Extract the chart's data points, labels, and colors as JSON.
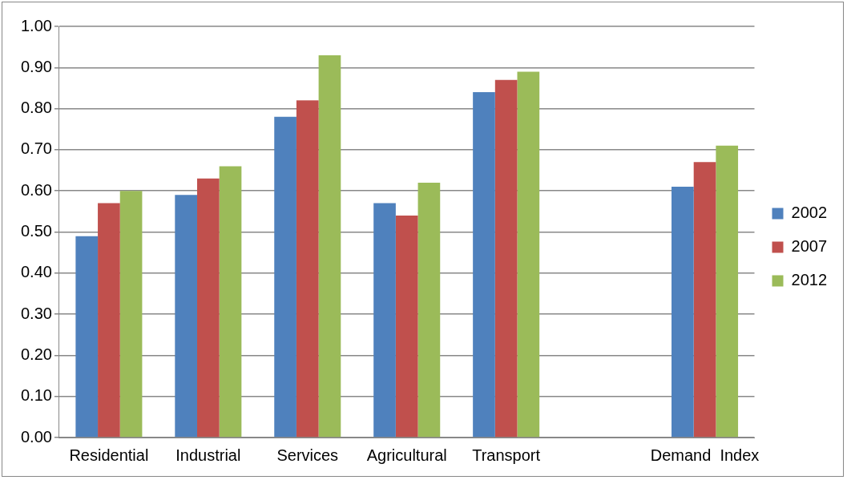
{
  "chart_data": {
    "type": "bar",
    "categories": [
      "Residential",
      "Industrial",
      "Services",
      "Agricultural",
      "Transport",
      null,
      "Demand  Index"
    ],
    "series": [
      {
        "name": "2002",
        "color": "#4f81bd",
        "values": [
          0.49,
          0.59,
          0.78,
          0.57,
          0.84,
          null,
          0.61
        ]
      },
      {
        "name": "2007",
        "color": "#c0504d",
        "values": [
          0.57,
          0.63,
          0.82,
          0.54,
          0.87,
          null,
          0.67
        ]
      },
      {
        "name": "2012",
        "color": "#9bbb59",
        "values": [
          0.6,
          0.66,
          0.93,
          0.62,
          0.89,
          null,
          0.71
        ]
      }
    ],
    "ylim": [
      0,
      1
    ],
    "yticks": [
      {
        "value": 0,
        "label": "0.00"
      },
      {
        "value": 0.1,
        "label": "0.10"
      },
      {
        "value": 0.2,
        "label": "0.20"
      },
      {
        "value": 0.3,
        "label": "0.30"
      },
      {
        "value": 0.4,
        "label": "0.40"
      },
      {
        "value": 0.5,
        "label": "0.50"
      },
      {
        "value": 0.6,
        "label": "0.60"
      },
      {
        "value": 0.7,
        "label": "0.70"
      },
      {
        "value": 0.8,
        "label": "0.80"
      },
      {
        "value": 0.9,
        "label": "0.90"
      },
      {
        "value": 1,
        "label": "1.00"
      }
    ],
    "grid": "y",
    "legend": "right"
  }
}
